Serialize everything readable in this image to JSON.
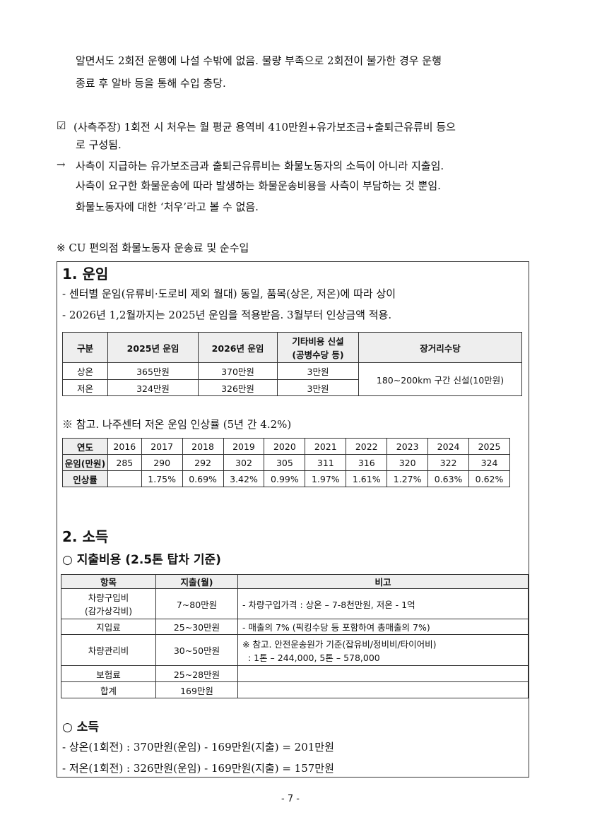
{
  "intro": {
    "line1": "알면서도 2회전 운행에 나설 수밖에 없음. 물량 부족으로 2회전이 불가한 경우 운행",
    "line2": "종료 후 알바 등을 통해 수입 충당.",
    "claim_mark": "☑",
    "claim1": "(사측주장) 1회전 시 처우는 월 평균 용역비 410만원+유가보조금+출퇴근유류비 등으",
    "claim2": "로 구성됨.",
    "arrow": "→",
    "rebut1": "사측이 지급하는 유가보조금과 출퇴근유류비는 화물노동자의 소득이 아니라 지출임.",
    "rebut2": "사측이 요구한 화물운송에 따라 발생하는 화물운송비용을 사측이 부담하는 것 뿐임.",
    "rebut3": "화물노동자에 대한 ‘처우’라고 볼 수 없음.",
    "note": "※ CU 편의점 화물노동자 운송료 및 순수입"
  },
  "sec1": {
    "title": "1. 운임",
    "bullet1": "- 센터별 운임(유류비·도로비 제외 월대) 동일, 품목(상온, 저온)에 따라 상이",
    "bullet2": "- 2026년 1,2월까지는 2025년 운임을 적용받음. 3월부터 인상금액 적용.",
    "table": {
      "headers": [
        "구분",
        "2025년 운임",
        "2026년 운임",
        "기타비용 신설",
        "(공병수당 등)",
        "장거리수당"
      ],
      "rows": [
        [
          "상온",
          "365만원",
          "370만원",
          "3만원"
        ],
        [
          "저온",
          "324만원",
          "326만원",
          "3만원"
        ]
      ],
      "long_distance": "180~200km 구간 신설(10만원)"
    },
    "ref_note": "※ 참고. 나주센터 저온 운임 인상률 (5년 간 4.2%)",
    "ref_table": {
      "row_labels": [
        "연도",
        "운임(만원)",
        "인상률"
      ],
      "years": [
        "2016",
        "2017",
        "2018",
        "2019",
        "2020",
        "2021",
        "2022",
        "2023",
        "2024",
        "2025"
      ],
      "fares": [
        "285",
        "290",
        "292",
        "302",
        "305",
        "311",
        "316",
        "320",
        "322",
        "324"
      ],
      "rates": [
        "",
        "1.75%",
        "0.69%",
        "3.42%",
        "0.99%",
        "1.97%",
        "1.61%",
        "1.27%",
        "0.63%",
        "0.62%"
      ]
    }
  },
  "sec2": {
    "title": "2. 소득",
    "expense_title": "○ 지출비용 (2.5톤 탑차 기준)",
    "table": {
      "headers": [
        "항목",
        "지출(월)",
        "비고"
      ],
      "rows": [
        {
          "item": "차량구입비",
          "item2": "(감가상각비)",
          "cost": "7~80만원",
          "note": "- 차량구입가격 : 상온 – 7-8천만원, 저온 - 1억",
          "note2": ""
        },
        {
          "item": "지입료",
          "item2": "",
          "cost": "25~30만원",
          "note": "-  매출의 7% (픽킹수당 등 포함하여 총매출의 7%)",
          "note2": ""
        },
        {
          "item": "차량관리비",
          "item2": "",
          "cost": "30~50만원",
          "note": "※ 참고. 안전운송원가 기준(잡유비/정비비/타이어비)",
          "note2": "  : 1톤 – 244,000, 5톤 – 578,000"
        },
        {
          "item": "보험료",
          "item2": "",
          "cost": "25~28만원",
          "note": "",
          "note2": ""
        },
        {
          "item": "합계",
          "item2": "",
          "cost": "169만원",
          "note": "",
          "note2": ""
        }
      ]
    },
    "income_title": "○ 소득",
    "income1": "- 상온(1회전) : 370만원(운임) - 169만원(지출) = 201만원",
    "income2": "- 저온(1회전) : 326만원(운임) - 169만원(지출) = 157만원"
  },
  "page_number": "- 7 -"
}
